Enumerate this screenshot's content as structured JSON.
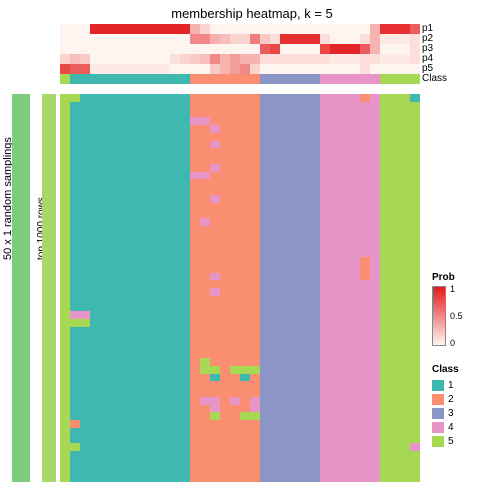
{
  "title": "membership heatmap, k = 5",
  "ylabel_outer": "50 x 1 random samplings",
  "ylabel_inner": "top 1000 rows",
  "prob_row_labels": [
    "p1",
    "p2",
    "p3",
    "p4",
    "p5"
  ],
  "class_row_label": "Class",
  "colors": {
    "sampling_bar": "#7ecb7e",
    "rowbar": "#a6d96a",
    "prob_gradient_low": "#fff5f0",
    "prob_gradient_high": "#e31a1c",
    "class": {
      "1": "#3fb8af",
      "2": "#f98e71",
      "3": "#8c96c6",
      "4": "#e695c6",
      "5": "#a6d854"
    },
    "white": "#ffffff"
  },
  "n_cols": 36,
  "prob_rows": {
    "p1": [
      0,
      0,
      0,
      0.95,
      0.95,
      0.95,
      0.95,
      0.95,
      0.95,
      0.95,
      0.95,
      0.95,
      0.95,
      0.3,
      0.15,
      0,
      0,
      0,
      0,
      0,
      0,
      0,
      0,
      0,
      0,
      0,
      0,
      0,
      0,
      0,
      0,
      0.3,
      0.9,
      0.9,
      0.9,
      0.7
    ],
    "p2": [
      0,
      0,
      0,
      0,
      0,
      0,
      0,
      0,
      0,
      0,
      0,
      0,
      0,
      0.5,
      0.5,
      0.3,
      0.25,
      0.15,
      0.15,
      0.55,
      0.2,
      0.1,
      0.9,
      0.9,
      0.9,
      0.9,
      0.1,
      0,
      0,
      0,
      0.1,
      0.3,
      0.05,
      0.05,
      0.05,
      0.1
    ],
    "p3": [
      0,
      0,
      0,
      0,
      0,
      0,
      0,
      0,
      0,
      0,
      0,
      0,
      0,
      0,
      0,
      0,
      0,
      0,
      0,
      0,
      0.7,
      0.8,
      0,
      0,
      0,
      0,
      0.8,
      0.95,
      0.95,
      0.95,
      0.7,
      0.3,
      0,
      0,
      0,
      0.1
    ],
    "p4": [
      0.15,
      0.25,
      0.2,
      0,
      0,
      0,
      0,
      0,
      0,
      0,
      0,
      0.1,
      0.15,
      0.2,
      0.25,
      0.5,
      0.3,
      0.4,
      0.3,
      0.3,
      0.1,
      0.1,
      0.1,
      0.1,
      0.1,
      0.1,
      0.1,
      0.05,
      0.05,
      0.05,
      0.1,
      0.1,
      0.05,
      0.05,
      0.05,
      0.1
    ],
    "p5": [
      0.8,
      0.7,
      0.7,
      0.05,
      0.05,
      0.05,
      0.05,
      0.05,
      0.05,
      0.05,
      0.05,
      0,
      0,
      0,
      0,
      0.2,
      0.3,
      0.4,
      0.5,
      0.15,
      0,
      0,
      0,
      0,
      0,
      0,
      0,
      0,
      0,
      0,
      0.1,
      0,
      0,
      0,
      0,
      0
    ]
  },
  "class_assign": [
    5,
    1,
    1,
    1,
    1,
    1,
    1,
    1,
    1,
    1,
    1,
    1,
    1,
    2,
    2,
    2,
    2,
    2,
    2,
    2,
    3,
    3,
    3,
    3,
    3,
    3,
    4,
    4,
    4,
    4,
    4,
    4,
    5,
    5,
    5,
    5
  ],
  "heatmap_columns": [
    [
      5,
      5,
      5,
      5,
      5,
      5,
      5,
      5,
      5,
      5,
      5,
      5,
      5,
      5,
      5,
      5,
      5,
      5,
      5,
      5,
      5,
      5,
      5,
      5,
      5,
      5,
      5,
      5,
      5,
      5,
      5,
      5,
      5,
      5,
      5,
      5,
      5,
      5,
      5,
      5,
      5,
      5,
      5,
      5,
      5,
      5,
      5,
      5,
      5,
      5
    ],
    [
      5,
      1,
      1,
      1,
      1,
      1,
      1,
      1,
      1,
      1,
      1,
      1,
      1,
      1,
      1,
      1,
      1,
      1,
      1,
      1,
      1,
      1,
      1,
      1,
      1,
      1,
      1,
      1,
      4,
      5,
      1,
      1,
      1,
      1,
      1,
      1,
      1,
      1,
      1,
      1,
      1,
      1,
      2,
      1,
      1,
      5,
      1,
      1,
      1,
      1
    ],
    [
      1,
      1,
      1,
      1,
      1,
      1,
      1,
      1,
      1,
      1,
      1,
      1,
      1,
      1,
      1,
      1,
      1,
      1,
      1,
      1,
      1,
      1,
      1,
      1,
      1,
      1,
      1,
      1,
      4,
      5,
      1,
      1,
      1,
      1,
      1,
      1,
      1,
      1,
      1,
      1,
      1,
      1,
      1,
      1,
      1,
      1,
      1,
      1,
      1,
      1
    ],
    [
      1,
      1,
      1,
      1,
      1,
      1,
      1,
      1,
      1,
      1,
      1,
      1,
      1,
      1,
      1,
      1,
      1,
      1,
      1,
      1,
      1,
      1,
      1,
      1,
      1,
      1,
      1,
      1,
      1,
      1,
      1,
      1,
      1,
      1,
      1,
      1,
      1,
      1,
      1,
      1,
      1,
      1,
      1,
      1,
      1,
      1,
      1,
      1,
      1,
      1
    ],
    [
      1,
      1,
      1,
      1,
      1,
      1,
      1,
      1,
      1,
      1,
      1,
      1,
      1,
      1,
      1,
      1,
      1,
      1,
      1,
      1,
      1,
      1,
      1,
      1,
      1,
      1,
      1,
      1,
      1,
      1,
      1,
      1,
      1,
      1,
      1,
      1,
      1,
      1,
      1,
      1,
      1,
      1,
      1,
      1,
      1,
      1,
      1,
      1,
      1,
      1
    ],
    [
      1,
      1,
      1,
      1,
      1,
      1,
      1,
      1,
      1,
      1,
      1,
      1,
      1,
      1,
      1,
      1,
      1,
      1,
      1,
      1,
      1,
      1,
      1,
      1,
      1,
      1,
      1,
      1,
      1,
      1,
      1,
      1,
      1,
      1,
      1,
      1,
      1,
      1,
      1,
      1,
      1,
      1,
      1,
      1,
      1,
      1,
      1,
      1,
      1,
      1
    ],
    [
      1,
      1,
      1,
      1,
      1,
      1,
      1,
      1,
      1,
      1,
      1,
      1,
      1,
      1,
      1,
      1,
      1,
      1,
      1,
      1,
      1,
      1,
      1,
      1,
      1,
      1,
      1,
      1,
      1,
      1,
      1,
      1,
      1,
      1,
      1,
      1,
      1,
      1,
      1,
      1,
      1,
      1,
      1,
      1,
      1,
      1,
      1,
      1,
      1,
      1
    ],
    [
      1,
      1,
      1,
      1,
      1,
      1,
      1,
      1,
      1,
      1,
      1,
      1,
      1,
      1,
      1,
      1,
      1,
      1,
      1,
      1,
      1,
      1,
      1,
      1,
      1,
      1,
      1,
      1,
      1,
      1,
      1,
      1,
      1,
      1,
      1,
      1,
      1,
      1,
      1,
      1,
      1,
      1,
      1,
      1,
      1,
      1,
      1,
      1,
      1,
      1
    ],
    [
      1,
      1,
      1,
      1,
      1,
      1,
      1,
      1,
      1,
      1,
      1,
      1,
      1,
      1,
      1,
      1,
      1,
      1,
      1,
      1,
      1,
      1,
      1,
      1,
      1,
      1,
      1,
      1,
      1,
      1,
      1,
      1,
      1,
      1,
      1,
      1,
      1,
      1,
      1,
      1,
      1,
      1,
      1,
      1,
      1,
      1,
      1,
      1,
      1,
      1
    ],
    [
      1,
      1,
      1,
      1,
      1,
      1,
      1,
      1,
      1,
      1,
      1,
      1,
      1,
      1,
      1,
      1,
      1,
      1,
      1,
      1,
      1,
      1,
      1,
      1,
      1,
      1,
      1,
      1,
      1,
      1,
      1,
      1,
      1,
      1,
      1,
      1,
      1,
      1,
      1,
      1,
      1,
      1,
      1,
      1,
      1,
      1,
      1,
      1,
      1,
      1
    ],
    [
      1,
      1,
      1,
      1,
      1,
      1,
      1,
      1,
      1,
      1,
      1,
      1,
      1,
      1,
      1,
      1,
      1,
      1,
      1,
      1,
      1,
      1,
      1,
      1,
      1,
      1,
      1,
      1,
      1,
      1,
      1,
      1,
      1,
      1,
      1,
      1,
      1,
      1,
      1,
      1,
      1,
      1,
      1,
      1,
      1,
      1,
      1,
      1,
      1,
      1
    ],
    [
      1,
      1,
      1,
      1,
      1,
      1,
      1,
      1,
      1,
      1,
      1,
      1,
      1,
      1,
      1,
      1,
      1,
      1,
      1,
      1,
      1,
      1,
      1,
      1,
      1,
      1,
      1,
      1,
      1,
      1,
      1,
      1,
      1,
      1,
      1,
      1,
      1,
      1,
      1,
      1,
      1,
      1,
      1,
      1,
      1,
      1,
      1,
      1,
      1,
      1
    ],
    [
      1,
      1,
      1,
      1,
      1,
      1,
      1,
      1,
      1,
      1,
      1,
      1,
      1,
      1,
      1,
      1,
      1,
      1,
      1,
      1,
      1,
      1,
      1,
      1,
      1,
      1,
      1,
      1,
      1,
      1,
      1,
      1,
      1,
      1,
      1,
      1,
      1,
      1,
      1,
      1,
      1,
      1,
      1,
      1,
      1,
      1,
      1,
      1,
      1,
      1
    ],
    [
      2,
      2,
      2,
      4,
      2,
      2,
      2,
      2,
      2,
      2,
      4,
      2,
      2,
      2,
      2,
      2,
      2,
      2,
      2,
      2,
      2,
      2,
      2,
      2,
      2,
      2,
      2,
      2,
      2,
      2,
      2,
      2,
      2,
      2,
      2,
      2,
      2,
      2,
      2,
      2,
      2,
      2,
      2,
      2,
      2,
      2,
      2,
      2,
      2,
      2
    ],
    [
      2,
      2,
      2,
      4,
      2,
      2,
      2,
      2,
      2,
      2,
      4,
      2,
      2,
      2,
      2,
      2,
      4,
      2,
      2,
      2,
      2,
      2,
      2,
      2,
      2,
      2,
      2,
      2,
      2,
      2,
      2,
      2,
      2,
      2,
      5,
      5,
      2,
      2,
      2,
      4,
      2,
      2,
      2,
      2,
      2,
      2,
      2,
      2,
      2,
      2
    ],
    [
      2,
      2,
      2,
      2,
      4,
      2,
      4,
      2,
      2,
      4,
      2,
      2,
      2,
      4,
      2,
      2,
      2,
      2,
      2,
      2,
      2,
      2,
      2,
      4,
      2,
      4,
      2,
      2,
      2,
      2,
      2,
      2,
      2,
      2,
      2,
      5,
      1,
      2,
      2,
      4,
      4,
      5,
      2,
      2,
      2,
      2,
      2,
      2,
      2,
      2
    ],
    [
      2,
      2,
      2,
      2,
      2,
      2,
      2,
      2,
      2,
      2,
      2,
      2,
      2,
      2,
      2,
      2,
      2,
      2,
      2,
      2,
      2,
      2,
      2,
      2,
      2,
      2,
      2,
      2,
      2,
      2,
      2,
      2,
      2,
      2,
      2,
      2,
      2,
      2,
      2,
      2,
      2,
      2,
      2,
      2,
      2,
      2,
      2,
      2,
      2,
      2
    ],
    [
      2,
      2,
      2,
      2,
      2,
      2,
      2,
      2,
      2,
      2,
      2,
      2,
      2,
      2,
      2,
      2,
      2,
      2,
      2,
      2,
      2,
      2,
      2,
      2,
      2,
      2,
      2,
      2,
      2,
      2,
      2,
      2,
      2,
      2,
      2,
      5,
      2,
      2,
      2,
      4,
      2,
      2,
      2,
      2,
      2,
      2,
      2,
      2,
      2,
      2
    ],
    [
      2,
      2,
      2,
      2,
      2,
      2,
      2,
      2,
      2,
      2,
      2,
      2,
      2,
      2,
      2,
      2,
      2,
      2,
      2,
      2,
      2,
      2,
      2,
      2,
      2,
      2,
      2,
      2,
      2,
      2,
      2,
      2,
      2,
      2,
      2,
      5,
      1,
      2,
      2,
      2,
      2,
      5,
      2,
      2,
      2,
      2,
      2,
      2,
      2,
      2
    ],
    [
      2,
      2,
      2,
      2,
      2,
      2,
      2,
      2,
      2,
      2,
      2,
      2,
      2,
      2,
      2,
      2,
      2,
      2,
      2,
      2,
      2,
      2,
      2,
      2,
      2,
      2,
      2,
      2,
      2,
      2,
      2,
      2,
      2,
      2,
      2,
      5,
      2,
      2,
      2,
      4,
      4,
      5,
      2,
      2,
      2,
      2,
      2,
      2,
      2,
      2
    ],
    [
      3,
      3,
      3,
      3,
      3,
      3,
      3,
      3,
      3,
      3,
      3,
      3,
      3,
      3,
      3,
      3,
      3,
      3,
      3,
      3,
      3,
      3,
      3,
      3,
      3,
      3,
      3,
      3,
      3,
      3,
      3,
      3,
      3,
      3,
      3,
      3,
      3,
      3,
      3,
      3,
      3,
      3,
      3,
      3,
      3,
      3,
      3,
      3,
      3,
      3
    ],
    [
      3,
      3,
      3,
      3,
      3,
      3,
      3,
      3,
      3,
      3,
      3,
      3,
      3,
      3,
      3,
      3,
      3,
      3,
      3,
      3,
      3,
      3,
      3,
      3,
      3,
      3,
      3,
      3,
      3,
      3,
      3,
      3,
      3,
      3,
      3,
      3,
      3,
      3,
      3,
      3,
      3,
      3,
      3,
      3,
      3,
      3,
      3,
      3,
      3,
      3
    ],
    [
      3,
      3,
      3,
      3,
      3,
      3,
      3,
      3,
      3,
      3,
      3,
      3,
      3,
      3,
      3,
      3,
      3,
      3,
      3,
      3,
      3,
      3,
      3,
      3,
      3,
      3,
      3,
      3,
      3,
      3,
      3,
      3,
      3,
      3,
      3,
      3,
      3,
      3,
      3,
      3,
      3,
      3,
      3,
      3,
      3,
      3,
      3,
      3,
      3,
      3
    ],
    [
      3,
      3,
      3,
      3,
      3,
      3,
      3,
      3,
      3,
      3,
      3,
      3,
      3,
      3,
      3,
      3,
      3,
      3,
      3,
      3,
      3,
      3,
      3,
      3,
      3,
      3,
      3,
      3,
      3,
      3,
      3,
      3,
      3,
      3,
      3,
      3,
      3,
      3,
      3,
      3,
      3,
      3,
      3,
      3,
      3,
      3,
      3,
      3,
      3,
      3
    ],
    [
      3,
      3,
      3,
      3,
      3,
      3,
      3,
      3,
      3,
      3,
      3,
      3,
      3,
      3,
      3,
      3,
      3,
      3,
      3,
      3,
      3,
      3,
      3,
      3,
      3,
      3,
      3,
      3,
      3,
      3,
      3,
      3,
      3,
      3,
      3,
      3,
      3,
      3,
      3,
      3,
      3,
      3,
      3,
      3,
      3,
      3,
      3,
      3,
      3,
      3
    ],
    [
      3,
      3,
      3,
      3,
      3,
      3,
      3,
      3,
      3,
      3,
      3,
      3,
      3,
      3,
      3,
      3,
      3,
      3,
      3,
      3,
      3,
      3,
      3,
      3,
      3,
      3,
      3,
      3,
      3,
      3,
      3,
      3,
      3,
      3,
      3,
      3,
      3,
      3,
      3,
      3,
      3,
      3,
      3,
      3,
      3,
      3,
      3,
      3,
      3,
      3
    ],
    [
      4,
      4,
      4,
      4,
      4,
      4,
      4,
      4,
      4,
      4,
      4,
      4,
      4,
      4,
      4,
      4,
      4,
      4,
      4,
      4,
      4,
      4,
      4,
      4,
      4,
      4,
      4,
      4,
      4,
      4,
      4,
      4,
      4,
      4,
      4,
      4,
      4,
      4,
      4,
      4,
      4,
      4,
      4,
      4,
      4,
      4,
      4,
      4,
      4,
      4
    ],
    [
      4,
      4,
      4,
      4,
      4,
      4,
      4,
      4,
      4,
      4,
      4,
      4,
      4,
      4,
      4,
      4,
      4,
      4,
      4,
      4,
      4,
      4,
      4,
      4,
      4,
      4,
      4,
      4,
      4,
      4,
      4,
      4,
      4,
      4,
      4,
      4,
      4,
      4,
      4,
      4,
      4,
      4,
      4,
      4,
      4,
      4,
      4,
      4,
      4,
      4
    ],
    [
      4,
      4,
      4,
      4,
      4,
      4,
      4,
      4,
      4,
      4,
      4,
      4,
      4,
      4,
      4,
      4,
      4,
      4,
      4,
      4,
      4,
      4,
      4,
      4,
      4,
      4,
      4,
      4,
      4,
      4,
      4,
      4,
      4,
      4,
      4,
      4,
      4,
      4,
      4,
      4,
      4,
      4,
      4,
      4,
      4,
      4,
      4,
      4,
      4,
      4
    ],
    [
      4,
      4,
      4,
      4,
      4,
      4,
      4,
      4,
      4,
      4,
      4,
      4,
      4,
      4,
      4,
      4,
      4,
      4,
      4,
      4,
      4,
      4,
      4,
      4,
      4,
      4,
      4,
      4,
      4,
      4,
      4,
      4,
      4,
      4,
      4,
      4,
      4,
      4,
      4,
      4,
      4,
      4,
      4,
      4,
      4,
      4,
      4,
      4,
      4,
      4
    ],
    [
      2,
      4,
      4,
      4,
      4,
      4,
      4,
      4,
      4,
      4,
      4,
      4,
      4,
      4,
      4,
      4,
      4,
      4,
      4,
      4,
      4,
      2,
      2,
      2,
      4,
      4,
      4,
      4,
      4,
      4,
      4,
      4,
      4,
      4,
      4,
      4,
      4,
      4,
      4,
      4,
      4,
      4,
      4,
      4,
      4,
      4,
      4,
      4,
      4,
      4
    ],
    [
      4,
      4,
      4,
      4,
      4,
      4,
      4,
      4,
      4,
      4,
      4,
      4,
      4,
      4,
      4,
      4,
      4,
      4,
      4,
      4,
      4,
      4,
      4,
      4,
      4,
      4,
      4,
      4,
      4,
      4,
      4,
      4,
      4,
      4,
      4,
      4,
      4,
      4,
      4,
      4,
      4,
      4,
      4,
      4,
      4,
      4,
      4,
      4,
      4,
      4
    ],
    [
      5,
      5,
      5,
      5,
      5,
      5,
      5,
      5,
      5,
      5,
      5,
      5,
      5,
      5,
      5,
      5,
      5,
      5,
      5,
      5,
      5,
      5,
      5,
      5,
      5,
      5,
      5,
      5,
      5,
      5,
      5,
      5,
      5,
      5,
      5,
      5,
      5,
      5,
      5,
      5,
      5,
      5,
      5,
      5,
      5,
      5,
      5,
      5,
      5,
      5
    ],
    [
      5,
      5,
      5,
      5,
      5,
      5,
      5,
      5,
      5,
      5,
      5,
      5,
      5,
      5,
      5,
      5,
      5,
      5,
      5,
      5,
      5,
      5,
      5,
      5,
      5,
      5,
      5,
      5,
      5,
      5,
      5,
      5,
      5,
      5,
      5,
      5,
      5,
      5,
      5,
      5,
      5,
      5,
      5,
      5,
      5,
      5,
      5,
      5,
      5,
      5
    ],
    [
      5,
      5,
      5,
      5,
      5,
      5,
      5,
      5,
      5,
      5,
      5,
      5,
      5,
      5,
      5,
      5,
      5,
      5,
      5,
      5,
      5,
      5,
      5,
      5,
      5,
      5,
      5,
      5,
      5,
      5,
      5,
      5,
      5,
      5,
      5,
      5,
      5,
      5,
      5,
      5,
      5,
      5,
      5,
      5,
      5,
      5,
      5,
      5,
      5,
      5
    ],
    [
      1,
      5,
      5,
      5,
      5,
      5,
      5,
      5,
      5,
      5,
      5,
      5,
      5,
      5,
      5,
      5,
      5,
      5,
      5,
      5,
      5,
      5,
      5,
      5,
      5,
      5,
      5,
      5,
      5,
      5,
      5,
      5,
      5,
      5,
      5,
      5,
      5,
      5,
      5,
      5,
      5,
      5,
      5,
      5,
      5,
      4,
      5,
      5,
      5,
      5
    ]
  ],
  "legend_prob": {
    "title": "Prob",
    "ticks": [
      "1",
      "0.5",
      "0"
    ]
  },
  "legend_class": {
    "title": "Class",
    "items": [
      "1",
      "2",
      "3",
      "4",
      "5"
    ]
  }
}
